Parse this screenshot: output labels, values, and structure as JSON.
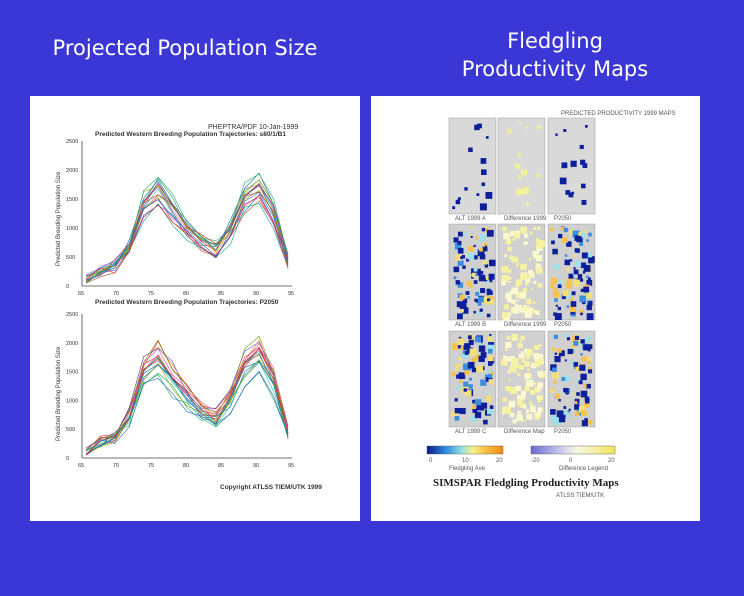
{
  "slide": {
    "left_title": "Projected Population Size",
    "right_title_line1": "Fledgling",
    "right_title_line2": "Productivity Maps"
  },
  "left_figure": {
    "header": "PHEPTRA/PDF 10-Jan-1999",
    "plot1_title": "Predicted Western Breeding Population Trajectories: s80/1/B1",
    "plot2_title": "Predicted Western Breeding Population Trajectories: P2050",
    "ylabel": "Predicted Breeding Population Size",
    "y_ticks": [
      "0",
      "500",
      "1000",
      "1500",
      "2000",
      "2500"
    ],
    "x_ticks": [
      "65",
      "70",
      "75",
      "80",
      "85",
      "90",
      "95"
    ],
    "copyright": "Copyright ATLSS TIEM/UTK 1999"
  },
  "right_figure": {
    "header": "PREDICTED PRODUCTIVITY 1999 MAPS",
    "row_labels": [
      [
        "ALT 1999 A",
        "Difference 1999",
        "P2050"
      ],
      [
        "ALT 1999 B",
        "Difference 1999",
        "P2050"
      ],
      [
        "ALT 1999 C",
        "Difference Map",
        "P2050"
      ]
    ],
    "legend_left_ticks": [
      "0",
      "10",
      "20"
    ],
    "legend_left_label": "Fledgling Ave",
    "legend_right_ticks": [
      "-20",
      "0",
      "20"
    ],
    "legend_right_label": "Difference Legend",
    "caption": "SIMSPAR Fledgling Productivity Maps",
    "credit": "ATLSS TIEM/UTK"
  },
  "colors": {
    "background": "#3a37d6",
    "panel": "#ffffff",
    "title_text": "#ffffff"
  }
}
